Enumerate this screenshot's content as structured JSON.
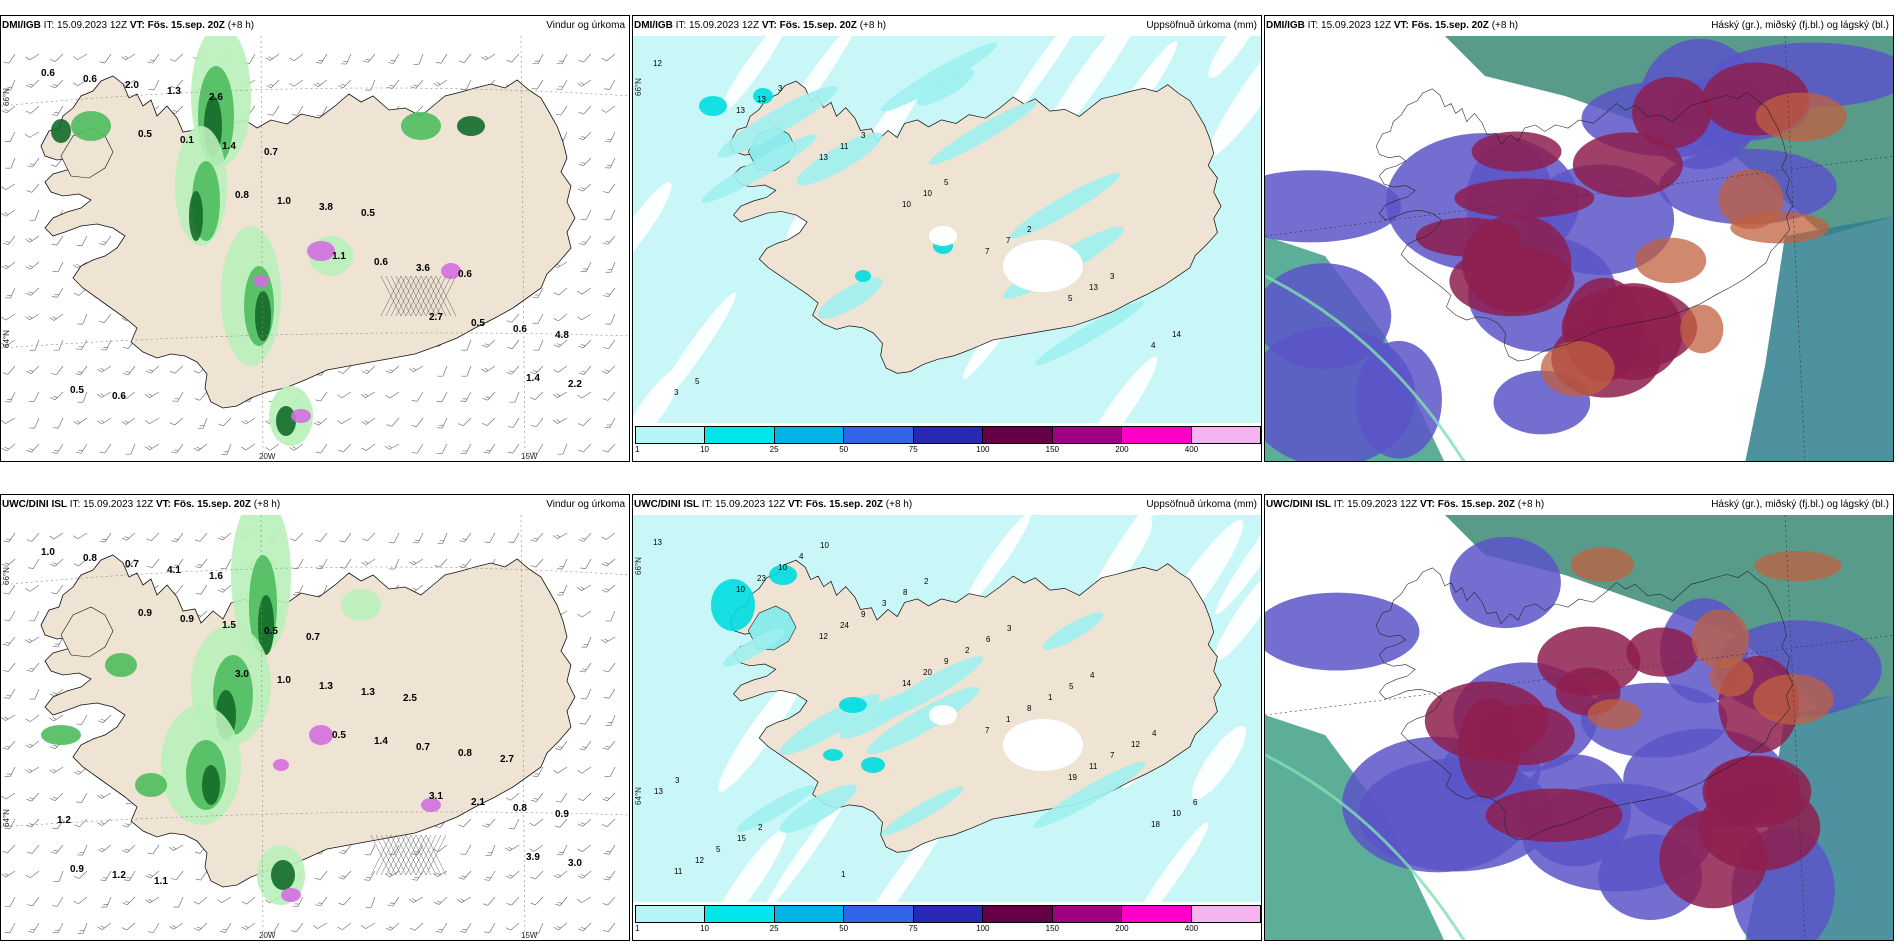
{
  "panels": [
    {
      "model": "DMI/IGB",
      "it": "IT: 15.09.2023 12Z",
      "vt_label": "VT:",
      "vt": "Fös. 15.sep. 20Z",
      "lead": "(+8 h)",
      "title": "Vindur og úrkoma",
      "type": "wind",
      "labels": [
        "0.6",
        "0.5",
        "0.8",
        "1.1",
        "2.7",
        "1.4",
        "0.6",
        "0.1",
        "1.0",
        "0.6",
        "0.5",
        "2.2",
        "2.0",
        "1.4",
        "3.8",
        "3.6",
        "0.6",
        "0.5",
        "1.3",
        "0.7",
        "0.5",
        "0.6",
        "4.8",
        "0.6",
        "2.6"
      ],
      "lon_labels": [
        "20W",
        "15W"
      ],
      "lat_labels": [
        "66°N",
        "64°N"
      ]
    },
    {
      "model": "DMI/IGB",
      "it": "IT: 15.09.2023 12Z",
      "vt_label": "VT:",
      "vt": "Fös. 15.sep. 20Z",
      "lead": "(+8 h)",
      "title": "Uppsöfnuð úrkoma (mm)",
      "type": "accum",
      "labels": [
        "12",
        "13",
        "13",
        "10",
        "7",
        "5",
        "4",
        "3",
        "13",
        "11",
        "10",
        "7",
        "13",
        "14",
        "5",
        "3",
        "3",
        "5",
        "2",
        "3"
      ],
      "lat_labels": [
        "66°N"
      ]
    },
    {
      "model": "DMI/IGB",
      "it": "IT: 15.09.2023 12Z",
      "vt_label": "VT:",
      "vt": "Fös. 15.sep. 20Z",
      "lead": "(+8 h)",
      "title": "Háský (gr.), miðský (fj.bl.) og lágský (bl.)",
      "type": "cloud"
    },
    {
      "model": "UWC/DINI ISL",
      "it": "IT: 15.09.2023 12Z",
      "vt_label": "VT:",
      "vt": "Fös. 15.sep. 20Z",
      "lead": "(+8 h)",
      "title": "Vindur og úrkoma",
      "type": "wind",
      "labels": [
        "1.0",
        "0.9",
        "3.0",
        "0.5",
        "3.1",
        "3.9",
        "0.8",
        "0.9",
        "1.0",
        "1.4",
        "2.1",
        "3.0",
        "0.7",
        "1.5",
        "1.3",
        "0.7",
        "0.8",
        "0.9",
        "4.1",
        "0.5",
        "1.3",
        "0.8",
        "0.9",
        "1.2",
        "1.6",
        "0.7",
        "2.5",
        "2.7",
        "1.2",
        "1.1"
      ],
      "lon_labels": [
        "20W",
        "15W"
      ],
      "lat_labels": [
        "66°N",
        "64°N"
      ]
    },
    {
      "model": "UWC/DINI ISL",
      "it": "IT: 15.09.2023 12Z",
      "vt_label": "VT:",
      "vt": "Fös. 15.sep. 20Z",
      "lead": "(+8 h)",
      "title": "Uppsöfnuð úrkoma (mm)",
      "type": "accum",
      "labels": [
        "13",
        "10",
        "12",
        "14",
        "7",
        "19",
        "18",
        "11",
        "23",
        "24",
        "20",
        "1",
        "11",
        "10",
        "12",
        "10",
        "9",
        "9",
        "8",
        "7",
        "6",
        "5",
        "4",
        "3",
        "2",
        "1",
        "12",
        "13",
        "15",
        "10",
        "8",
        "6",
        "5",
        "4",
        "3",
        "2",
        "1",
        "2",
        "3",
        "4"
      ],
      "lat_labels": [
        "66°N",
        "64°N"
      ]
    },
    {
      "model": "UWC/DINI ISL",
      "it": "IT: 15.09.2023 12Z",
      "vt_label": "VT:",
      "vt": "Fös. 15.sep. 20Z",
      "lead": "(+8 h)",
      "title": "Háský (gr.), miðský (fj.bl.) og lágský (bl.)",
      "type": "cloud"
    }
  ],
  "colorbar": {
    "ticks": [
      "1",
      "10",
      "25",
      "50",
      "75",
      "100",
      "150",
      "200",
      "400"
    ],
    "colors": [
      "#b4f5f5",
      "#00e6ea",
      "#00b4e6",
      "#3264e6",
      "#2828b4",
      "#640046",
      "#a00082",
      "#ff00c8",
      "#f5b4f0"
    ]
  },
  "colors": {
    "land": "#efe3d3",
    "sea_wind": "#ffffff",
    "sea_accum": "#c9f7f7",
    "precip_light": "#b9efb9",
    "precip_mid": "#4ebd5e",
    "precip_heavy": "#136b2a",
    "magenta": "#d36ee0"
  }
}
